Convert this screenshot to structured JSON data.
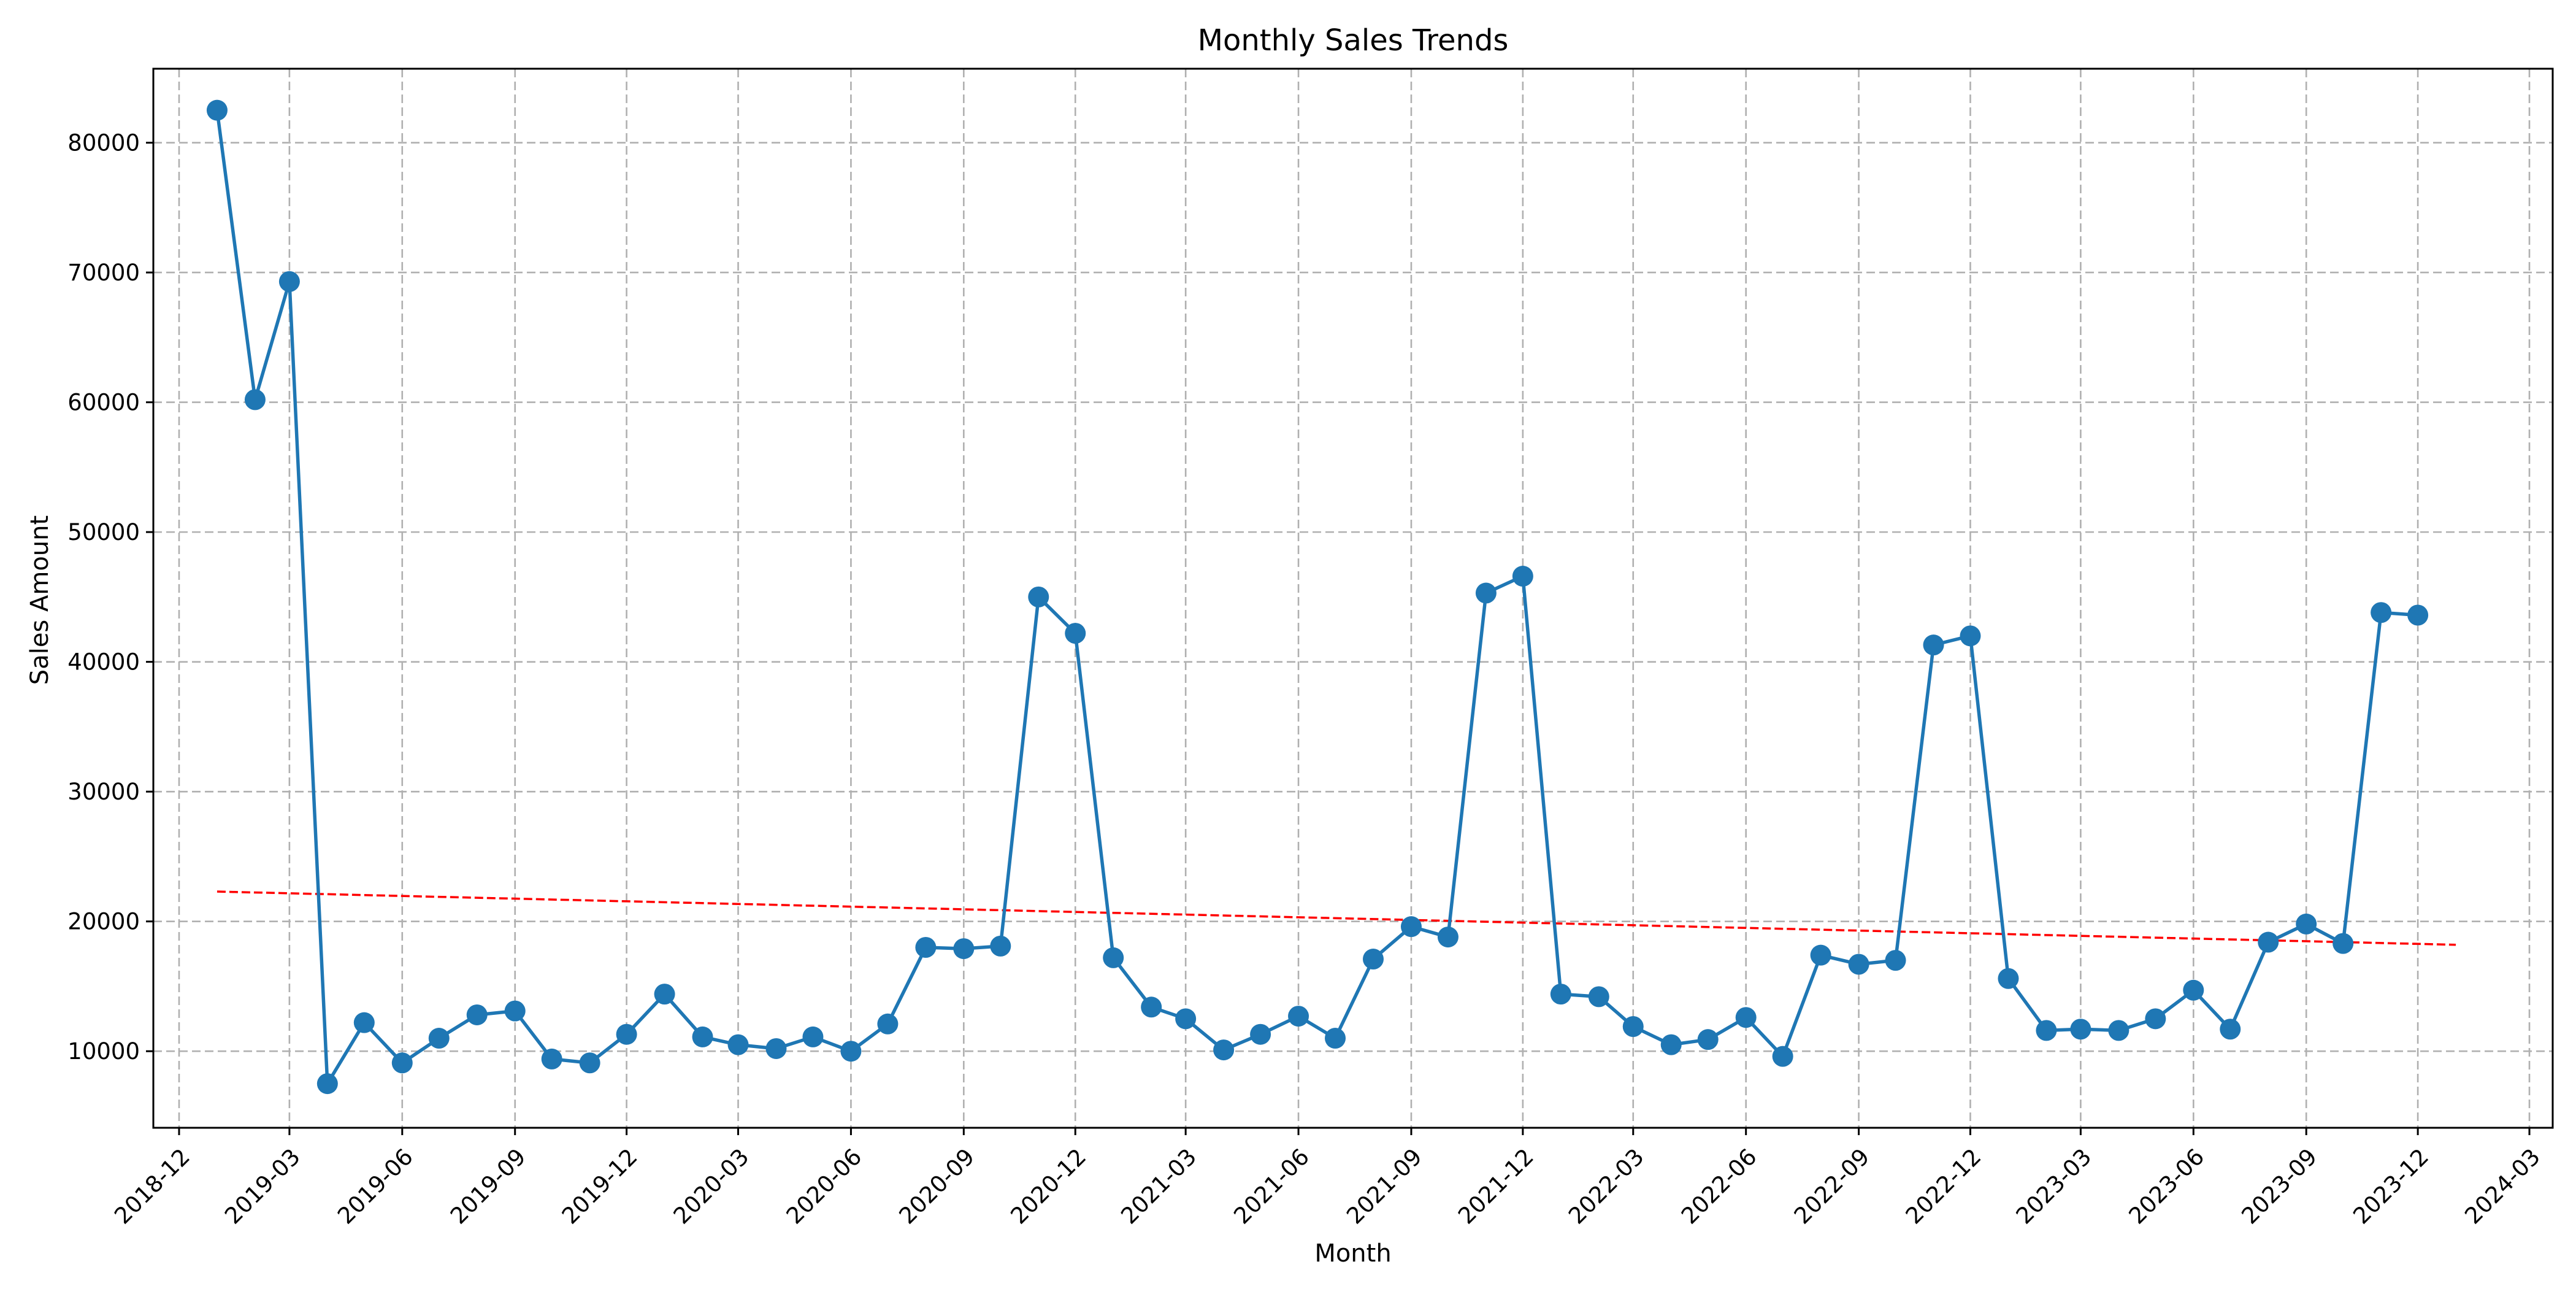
{
  "chart_data": {
    "type": "line",
    "title": "Monthly Sales Trends",
    "xlabel": "Month",
    "ylabel": "Sales Amount",
    "x": [
      "2019-01",
      "2019-02",
      "2019-03",
      "2019-04",
      "2019-05",
      "2019-06",
      "2019-07",
      "2019-08",
      "2019-09",
      "2019-10",
      "2019-11",
      "2019-12",
      "2020-01",
      "2020-02",
      "2020-03",
      "2020-04",
      "2020-05",
      "2020-06",
      "2020-07",
      "2020-08",
      "2020-09",
      "2020-10",
      "2020-11",
      "2020-12",
      "2021-01",
      "2021-02",
      "2021-03",
      "2021-04",
      "2021-05",
      "2021-06",
      "2021-07",
      "2021-08",
      "2021-09",
      "2021-10",
      "2021-11",
      "2021-12",
      "2022-01",
      "2022-02",
      "2022-03",
      "2022-04",
      "2022-05",
      "2022-06",
      "2022-07",
      "2022-08",
      "2022-09",
      "2022-10",
      "2022-11",
      "2022-12",
      "2023-01",
      "2023-02",
      "2023-03",
      "2023-04",
      "2023-05",
      "2023-06",
      "2023-07",
      "2023-08",
      "2023-09",
      "2023-10",
      "2023-11",
      "2023-12",
      "2024-01"
    ],
    "series": [
      {
        "color": "#1f77b4",
        "values": [
          82500,
          60200,
          69300,
          7500,
          12200,
          9100,
          11000,
          12800,
          13100,
          9400,
          9100,
          11300,
          14400,
          11100,
          10500,
          10200,
          11100,
          10000,
          12100,
          18000,
          17900,
          18100,
          45000,
          42200,
          17200,
          13400,
          12500,
          10100,
          11300,
          12700,
          11000,
          17100,
          19600,
          18800,
          45300,
          46600,
          14400,
          14200,
          11900,
          10500,
          10900,
          12600,
          9600,
          17400,
          16700,
          17000,
          41300,
          42000,
          15600,
          11600,
          11700,
          11600,
          12500,
          14700,
          11700,
          18400,
          19800,
          18300,
          43800,
          43600,
          null
        ]
      }
    ],
    "trend_line": {
      "color": "#ff0000",
      "start": [
        "2019-01",
        22300
      ],
      "end": [
        "2024-01",
        18200
      ]
    },
    "xlim": [
      "2018-11-10",
      "2024-03-20"
    ],
    "ylim": [
      4100,
      85700
    ],
    "x_ticks": [
      "2018-12",
      "2019-03",
      "2019-06",
      "2019-09",
      "2019-12",
      "2020-03",
      "2020-06",
      "2020-09",
      "2020-12",
      "2021-03",
      "2021-06",
      "2021-09",
      "2021-12",
      "2022-03",
      "2022-06",
      "2022-09",
      "2022-12",
      "2023-03",
      "2023-06",
      "2023-09",
      "2023-12",
      "2024-03"
    ],
    "y_ticks": [
      10000,
      20000,
      30000,
      40000,
      50000,
      60000,
      70000,
      80000
    ],
    "y_tick_labels": [
      "10000",
      "20000",
      "30000",
      "40000",
      "50000",
      "60000",
      "70000",
      "80000"
    ],
    "grid": true
  }
}
